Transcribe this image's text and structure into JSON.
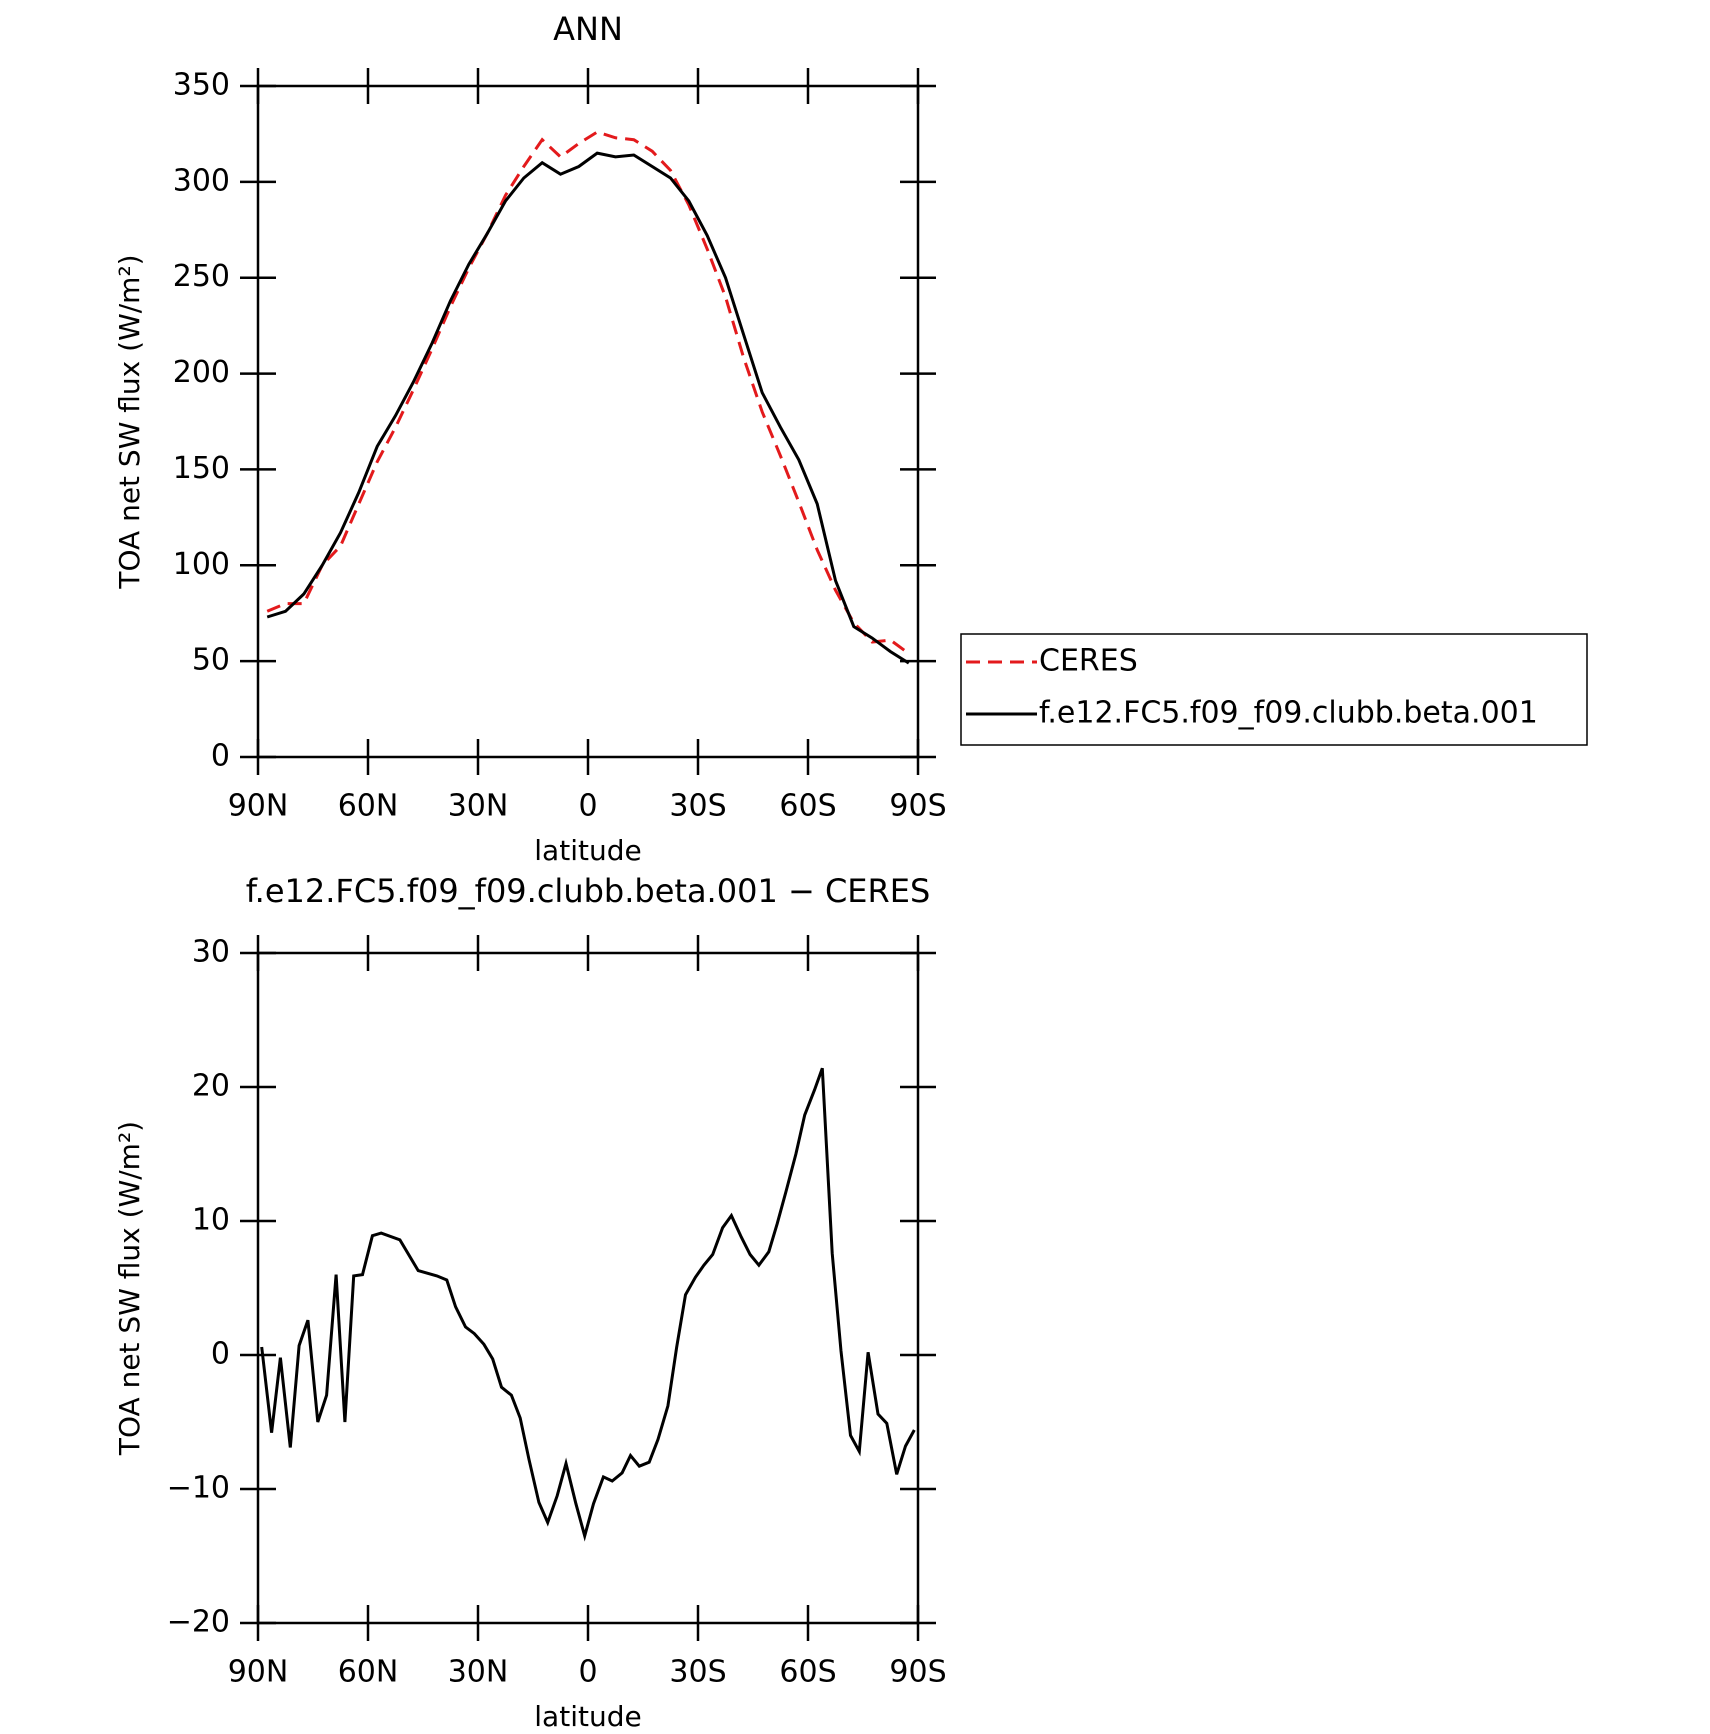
{
  "chart_data": [
    {
      "type": "line",
      "title": "ANN",
      "xlabel": "latitude",
      "ylabel": "TOA net SW flux (W/m²)",
      "xlim": [
        90,
        -90
      ],
      "xticks": [
        {
          "value": 90,
          "label": "90N"
        },
        {
          "value": 60,
          "label": "60N"
        },
        {
          "value": 30,
          "label": "30N"
        },
        0,
        {
          "value": -30,
          "label": "30S"
        },
        {
          "value": -60,
          "label": "60S"
        },
        {
          "value": -90,
          "label": "90S"
        }
      ],
      "ylim": [
        0,
        350
      ],
      "yticks": [
        0,
        50,
        100,
        150,
        200,
        250,
        300,
        350
      ],
      "legend": "right",
      "x": [
        87.5,
        82.5,
        77.5,
        72.5,
        67.5,
        62.5,
        57.5,
        52.5,
        47.5,
        42.5,
        37.5,
        32.5,
        27.5,
        22.5,
        17.5,
        12.5,
        7.5,
        2.5,
        -2.5,
        -7.5,
        -12.5,
        -17.5,
        -22.5,
        -27.5,
        -32.5,
        -37.5,
        -42.5,
        -47.5,
        -52.5,
        -57.5,
        -62.5,
        -67.5,
        -72.5,
        -77.5,
        -82.5,
        -87.5
      ],
      "series": [
        {
          "name": "CERES",
          "color": "#e31a1c",
          "style": "dashed",
          "values": [
            76,
            80,
            80,
            100,
            110,
            132,
            154,
            172,
            192,
            213,
            235,
            255,
            273,
            293,
            308,
            322,
            313,
            320,
            326,
            323,
            322,
            316,
            306,
            288,
            265,
            240,
            208,
            180,
            157,
            133,
            108,
            87,
            70,
            60,
            61,
            54
          ]
        },
        {
          "name": "f.e12.FC5.f09_f09.clubb.beta.001",
          "color": "#000000",
          "style": "solid",
          "values": [
            73,
            76,
            85,
            100,
            117,
            138,
            162,
            178,
            196,
            216,
            238,
            257,
            273,
            290,
            302,
            310,
            304,
            308,
            315,
            313,
            314,
            308,
            302,
            290,
            272,
            250,
            220,
            190,
            172,
            155,
            132,
            92,
            68,
            62,
            55,
            49
          ]
        }
      ]
    },
    {
      "type": "line",
      "title": "f.e12.FC5.f09_f09.clubb.beta.001 − CERES",
      "xlabel": "latitude",
      "ylabel": "TOA net SW flux (W/m²)",
      "xlim": [
        90,
        -90
      ],
      "xticks": [
        {
          "value": 90,
          "label": "90N"
        },
        {
          "value": 60,
          "label": "60N"
        },
        {
          "value": 30,
          "label": "30N"
        },
        0,
        {
          "value": -30,
          "label": "30S"
        },
        {
          "value": -60,
          "label": "60S"
        },
        {
          "value": -90,
          "label": "90S"
        }
      ],
      "ylim": [
        -20,
        30
      ],
      "yticks": [
        {
          "value": -20,
          "label": "−20"
        },
        {
          "value": -10,
          "label": "−10"
        },
        0,
        10,
        20,
        30
      ],
      "x": [
        89,
        86.3,
        83.9,
        81.2,
        78.8,
        76.4,
        73.7,
        71.3,
        68.7,
        66.3,
        63.9,
        61.5,
        58.8,
        56.4,
        51.3,
        46.3,
        41.2,
        38.5,
        36.1,
        33.4,
        31,
        28.4,
        26,
        23.6,
        20.9,
        18.5,
        16.1,
        13.4,
        11,
        8.4,
        6,
        3.3,
        0.9,
        -1.5,
        -4.2,
        -6.6,
        -9.3,
        -11.6,
        -14,
        -16.7,
        -19.1,
        -21.8,
        -24.2,
        -26.6,
        -29.3,
        -31.6,
        -34,
        -36.7,
        -39.1,
        -41.8,
        -44.2,
        -46.6,
        -49.3,
        -51.6,
        -54,
        -56.7,
        -59.1,
        -61.8,
        -63.9,
        -66.6,
        -69,
        -71.6,
        -74,
        -76.4,
        -79.1,
        -81.5,
        -84.2,
        -86.6,
        -89
      ],
      "series": [
        {
          "name": "f.e12.FC5.f09_f09.clubb.beta.001 − CERES",
          "color": "#000000",
          "style": "solid",
          "values": [
            0.6,
            -5.8,
            -0.2,
            -6.9,
            0.7,
            2.6,
            -5,
            -3,
            6,
            -5,
            5.9,
            6,
            8.9,
            9.1,
            8.6,
            6.3,
            5.9,
            5.6,
            3.6,
            2.1,
            1.6,
            0.8,
            -0.3,
            -2.4,
            -3,
            -4.7,
            -7.8,
            -11,
            -12.5,
            -10.5,
            -8.1,
            -11.1,
            -13.5,
            -11.1,
            -9.1,
            -9.4,
            -8.8,
            -7.5,
            -8.3,
            -8,
            -6.3,
            -3.8,
            0.6,
            4.5,
            5.8,
            6.7,
            7.5,
            9.5,
            10.4,
            8.8,
            7.5,
            6.7,
            7.7,
            9.8,
            12.2,
            15,
            17.9,
            19.8,
            21.4,
            7.6,
            0.3,
            -6,
            -7.2,
            0.2,
            -4.4,
            -5.1,
            -8.9,
            -6.8,
            -5.6
          ]
        }
      ]
    }
  ]
}
